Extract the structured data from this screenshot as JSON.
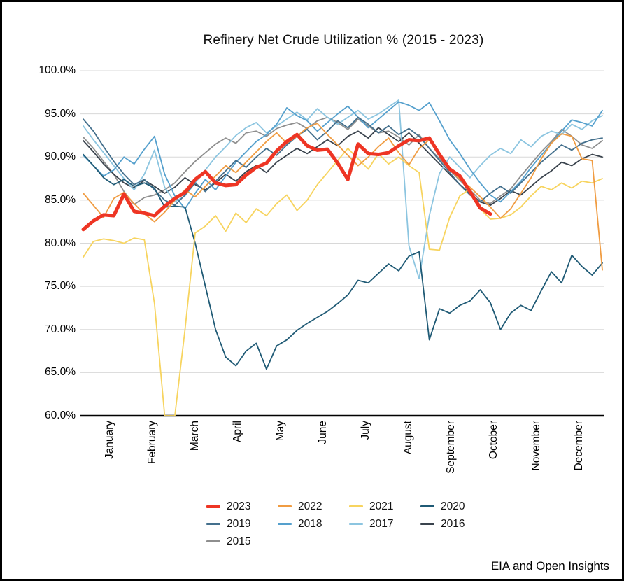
{
  "page": {
    "title": "Refinery Net Crude Utilization % (2015 - 2023)",
    "attribution": "EIA and Open Insights"
  },
  "chart_data": {
    "type": "line",
    "title": "Refinery Net Crude Utilization % (2015 - 2023)",
    "xlabel": "",
    "ylabel": "",
    "ylim": [
      60,
      100
    ],
    "y_ticks": [
      "100.0%",
      "95.0%",
      "90.0%",
      "85.0%",
      "80.0%",
      "75.0%",
      "70.0%",
      "65.0%",
      "60.0%"
    ],
    "y_tick_values": [
      100,
      95,
      90,
      85,
      80,
      75,
      70,
      65,
      60
    ],
    "x_categories": [
      "January",
      "February",
      "March",
      "April",
      "May",
      "June",
      "July",
      "August",
      "September",
      "October",
      "November",
      "December"
    ],
    "x_spacing": "weekly (52 points per full year; 2023 ends mid-October)",
    "points_per_year": 52,
    "grid": "horizontal-only",
    "legend_position": "bottom",
    "axis_color": "#000000",
    "gridline_color": "#d8d8d8",
    "series": [
      {
        "name": "2023",
        "color": "#ee3524",
        "line_width": 5,
        "values": [
          81.6,
          82.6,
          83.3,
          83.2,
          85.7,
          83.7,
          83.5,
          83.2,
          84.3,
          85.2,
          85.9,
          87.4,
          88.3,
          87.0,
          86.7,
          86.8,
          87.9,
          88.8,
          89.3,
          90.7,
          91.8,
          92.6,
          91.3,
          90.8,
          90.9,
          89.3,
          87.4,
          91.5,
          90.4,
          90.3,
          90.5,
          91.3,
          92.0,
          91.9,
          92.2,
          90.3,
          88.6,
          87.8,
          86.0,
          84.1,
          83.4
        ]
      },
      {
        "name": "2022",
        "color": "#f09c42",
        "line_width": 1.8,
        "values": [
          85.8,
          84.4,
          83.0,
          85.2,
          85.9,
          84.6,
          83.4,
          82.5,
          83.6,
          85.0,
          86.2,
          85.4,
          86.6,
          87.8,
          89.0,
          88.2,
          89.4,
          90.6,
          91.8,
          92.8,
          91.6,
          92.4,
          93.4,
          93.9,
          92.6,
          91.4,
          90.2,
          89.0,
          90.0,
          91.2,
          92.2,
          90.5,
          89.1,
          91.0,
          92.0,
          90.3,
          88.6,
          87.4,
          86.5,
          85.4,
          84.2,
          82.9,
          84.0,
          85.8,
          87.6,
          89.8,
          91.6,
          92.7,
          92.4,
          89.8,
          89.6,
          76.9
        ]
      },
      {
        "name": "2021",
        "color": "#f7d45f",
        "line_width": 1.8,
        "values": [
          78.4,
          80.2,
          80.5,
          80.3,
          80.0,
          80.6,
          80.4,
          73.0,
          60.0,
          60.0,
          70.0,
          81.2,
          82.0,
          83.2,
          81.4,
          83.5,
          82.4,
          84.0,
          83.2,
          84.6,
          85.6,
          83.8,
          85.0,
          86.8,
          88.2,
          89.6,
          91.0,
          89.8,
          88.6,
          90.4,
          89.2,
          90.0,
          89.0,
          88.2,
          79.3,
          79.2,
          83.0,
          85.5,
          86.3,
          84.0,
          82.8,
          82.9,
          83.3,
          84.2,
          85.5,
          86.6,
          86.2,
          87.0,
          86.4,
          87.2,
          87.0,
          87.5
        ]
      },
      {
        "name": "2020",
        "color": "#1f5a75",
        "line_width": 1.8,
        "values": [
          90.3,
          89.0,
          87.6,
          86.8,
          87.4,
          86.6,
          87.0,
          86.4,
          84.2,
          84.3,
          84.2,
          80.0,
          75.0,
          70.0,
          66.8,
          65.8,
          67.5,
          68.4,
          65.4,
          68.1,
          68.8,
          69.9,
          70.7,
          71.4,
          72.1,
          73.0,
          74.0,
          75.7,
          75.4,
          76.5,
          77.6,
          76.8,
          78.5,
          79.0,
          68.8,
          72.4,
          71.9,
          72.8,
          73.3,
          74.6,
          73.1,
          70.0,
          71.9,
          72.8,
          72.2,
          74.5,
          76.7,
          75.4,
          78.6,
          77.3,
          76.3,
          77.7
        ]
      },
      {
        "name": "2019",
        "color": "#44708d",
        "line_width": 1.8,
        "values": [
          94.4,
          93.0,
          91.2,
          89.5,
          88.0,
          86.8,
          87.4,
          86.2,
          85.0,
          84.4,
          85.6,
          87.0,
          86.0,
          87.2,
          88.4,
          89.6,
          88.8,
          90.0,
          91.0,
          90.2,
          91.4,
          92.4,
          93.2,
          92.0,
          93.0,
          94.2,
          93.4,
          94.6,
          93.8,
          92.8,
          93.6,
          92.6,
          93.3,
          92.4,
          91.0,
          89.6,
          88.2,
          86.8,
          85.6,
          84.8,
          85.8,
          86.6,
          85.8,
          87.0,
          88.2,
          89.4,
          90.4,
          91.4,
          90.8,
          91.6,
          92.0,
          92.2
        ]
      },
      {
        "name": "2018",
        "color": "#55a0cd",
        "line_width": 1.8,
        "values": [
          90.2,
          89.0,
          87.8,
          88.5,
          90.0,
          89.2,
          90.9,
          92.4,
          88.0,
          85.5,
          84.0,
          85.8,
          87.4,
          86.2,
          87.8,
          89.4,
          90.6,
          91.8,
          92.6,
          93.8,
          95.7,
          94.8,
          94.2,
          93.0,
          94.0,
          95.0,
          95.9,
          94.6,
          93.4,
          94.4,
          95.4,
          96.4,
          96.0,
          95.4,
          96.3,
          94.2,
          92.0,
          90.4,
          88.6,
          87.0,
          85.6,
          84.8,
          86.0,
          87.2,
          88.8,
          90.2,
          91.6,
          93.0,
          94.3,
          94.0,
          93.6,
          95.4
        ]
      },
      {
        "name": "2017",
        "color": "#8cc5e0",
        "line_width": 1.8,
        "values": [
          93.6,
          92.0,
          90.5,
          89.0,
          87.5,
          86.2,
          88.0,
          90.8,
          86.5,
          84.8,
          85.5,
          87.0,
          88.5,
          90.0,
          91.2,
          92.5,
          93.4,
          94.0,
          92.8,
          93.6,
          94.4,
          95.2,
          94.3,
          95.6,
          94.6,
          93.8,
          94.6,
          95.4,
          94.4,
          95.0,
          95.8,
          96.6,
          79.7,
          75.9,
          83.2,
          88.1,
          90.0,
          88.8,
          87.6,
          89.0,
          90.2,
          91.0,
          90.4,
          92.0,
          91.2,
          92.4,
          93.0,
          92.6,
          93.8,
          93.2,
          94.2,
          94.8
        ]
      },
      {
        "name": "2016",
        "color": "#3a434d",
        "line_width": 1.8,
        "values": [
          91.9,
          90.6,
          89.2,
          88.0,
          87.0,
          86.4,
          87.3,
          86.6,
          85.8,
          86.5,
          87.6,
          86.8,
          86.2,
          87.0,
          88.0,
          87.2,
          88.3,
          89.0,
          88.2,
          89.4,
          90.2,
          91.0,
          90.4,
          91.2,
          92.0,
          91.3,
          92.4,
          93.0,
          92.2,
          93.4,
          92.6,
          91.8,
          92.8,
          91.6,
          90.4,
          89.2,
          88.0,
          86.8,
          85.8,
          84.8,
          84.4,
          85.2,
          86.1,
          85.6,
          86.6,
          87.6,
          88.4,
          89.4,
          89.0,
          89.8,
          90.3,
          90.0
        ]
      },
      {
        "name": "2015",
        "color": "#8e8e8e",
        "line_width": 1.8,
        "values": [
          92.3,
          91.0,
          89.5,
          88.0,
          86.0,
          84.5,
          85.3,
          85.6,
          86.2,
          87.0,
          88.3,
          89.5,
          90.5,
          91.5,
          92.2,
          91.6,
          92.8,
          93.0,
          92.4,
          93.3,
          93.7,
          94.0,
          93.3,
          94.2,
          94.6,
          94.0,
          93.2,
          94.4,
          93.6,
          92.8,
          93.0,
          92.3,
          91.4,
          92.6,
          91.0,
          89.8,
          88.5,
          87.3,
          86.2,
          85.0,
          84.6,
          85.5,
          86.3,
          87.8,
          89.2,
          90.6,
          91.8,
          93.2,
          92.4,
          91.4,
          91.0,
          91.9
        ]
      }
    ]
  }
}
